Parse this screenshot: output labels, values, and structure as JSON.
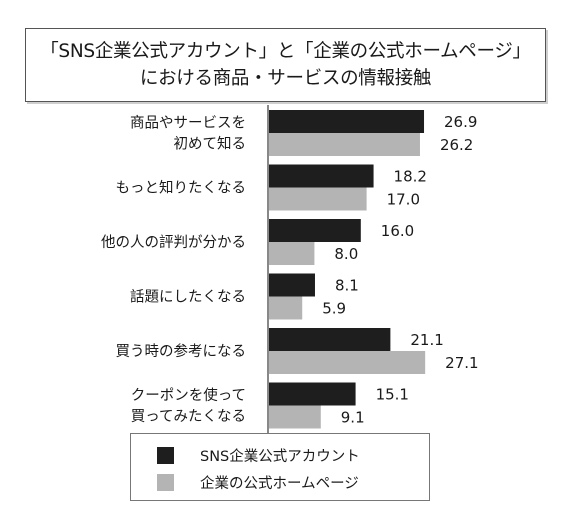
{
  "chart_data": {
    "type": "bar",
    "orientation": "horizontal",
    "title_lines": [
      "「SNS企業公式アカウント」と「企業の公式ホームページ」",
      "における商品・サービスの情報接触"
    ],
    "categories": [
      [
        "商品やサービスを",
        "初めて知る"
      ],
      [
        "もっと知りたくなる"
      ],
      [
        "他の人の評判が分かる"
      ],
      [
        "話題にしたくなる"
      ],
      [
        "買う時の参考になる"
      ],
      [
        "クーポンを使って",
        "買ってみたくなる"
      ]
    ],
    "series": [
      {
        "name": "SNS企業公式アカウント",
        "color": "#1e1e1e",
        "values": [
          26.9,
          18.2,
          16.0,
          8.1,
          21.1,
          15.1
        ],
        "labels": [
          "26.9",
          "18.2",
          "16.0",
          "8.1",
          "21.1",
          "15.1"
        ]
      },
      {
        "name": "企業の公式ホームページ",
        "color": "#b4b4b4",
        "values": [
          26.2,
          17.0,
          8.0,
          5.9,
          27.1,
          9.1
        ],
        "labels": [
          "26.2",
          "17.0",
          "8.0",
          "5.9",
          "27.1",
          "9.1"
        ]
      }
    ],
    "xlim": [
      0,
      30
    ],
    "legend_position": "bottom"
  }
}
